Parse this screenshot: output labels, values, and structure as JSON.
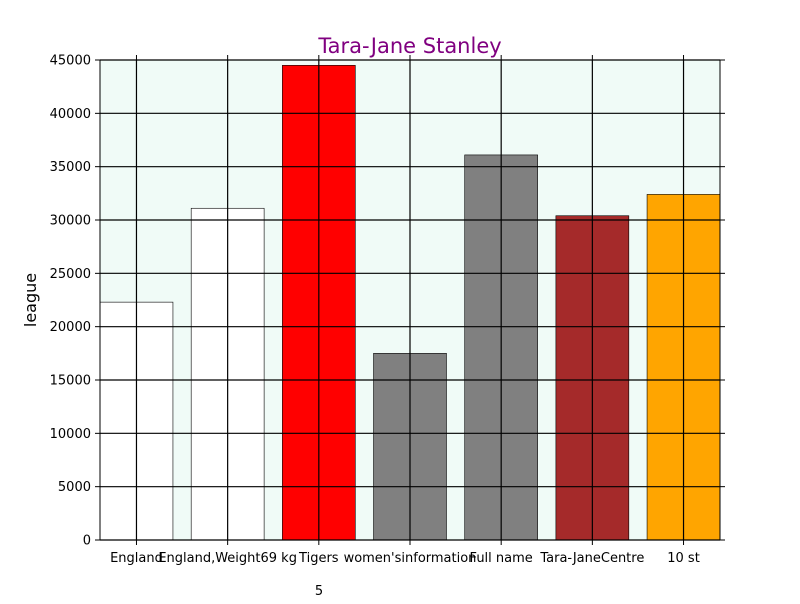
{
  "chart_data": {
    "type": "bar",
    "title": "Tara-Jane Stanley",
    "title_color": "#800080",
    "xlabel": "5",
    "ylabel": "league",
    "categories": [
      "England",
      "England,Weight69 kg",
      "Tigers",
      "women's information",
      "Full name",
      "Tara-Jane Centre",
      "10 st"
    ],
    "tick_labels": [
      "England",
      "England,Weight69 kg",
      "Tigers",
      "women'sinformation",
      "Full name",
      "Tara-JaneCentre",
      "10 st"
    ],
    "values": [
      22300,
      31100,
      44500,
      17500,
      36100,
      30400,
      32400
    ],
    "colors": [
      "#ffffff",
      "#ffffff",
      "#ff0000",
      "#808080",
      "#808080",
      "#a52a2a",
      "#ffa500"
    ],
    "ylim": [
      0,
      45000
    ],
    "yticks": [
      0,
      5000,
      10000,
      15000,
      20000,
      25000,
      30000,
      35000,
      40000,
      45000
    ],
    "grid": true,
    "plot_background": "#f0fbf7"
  }
}
